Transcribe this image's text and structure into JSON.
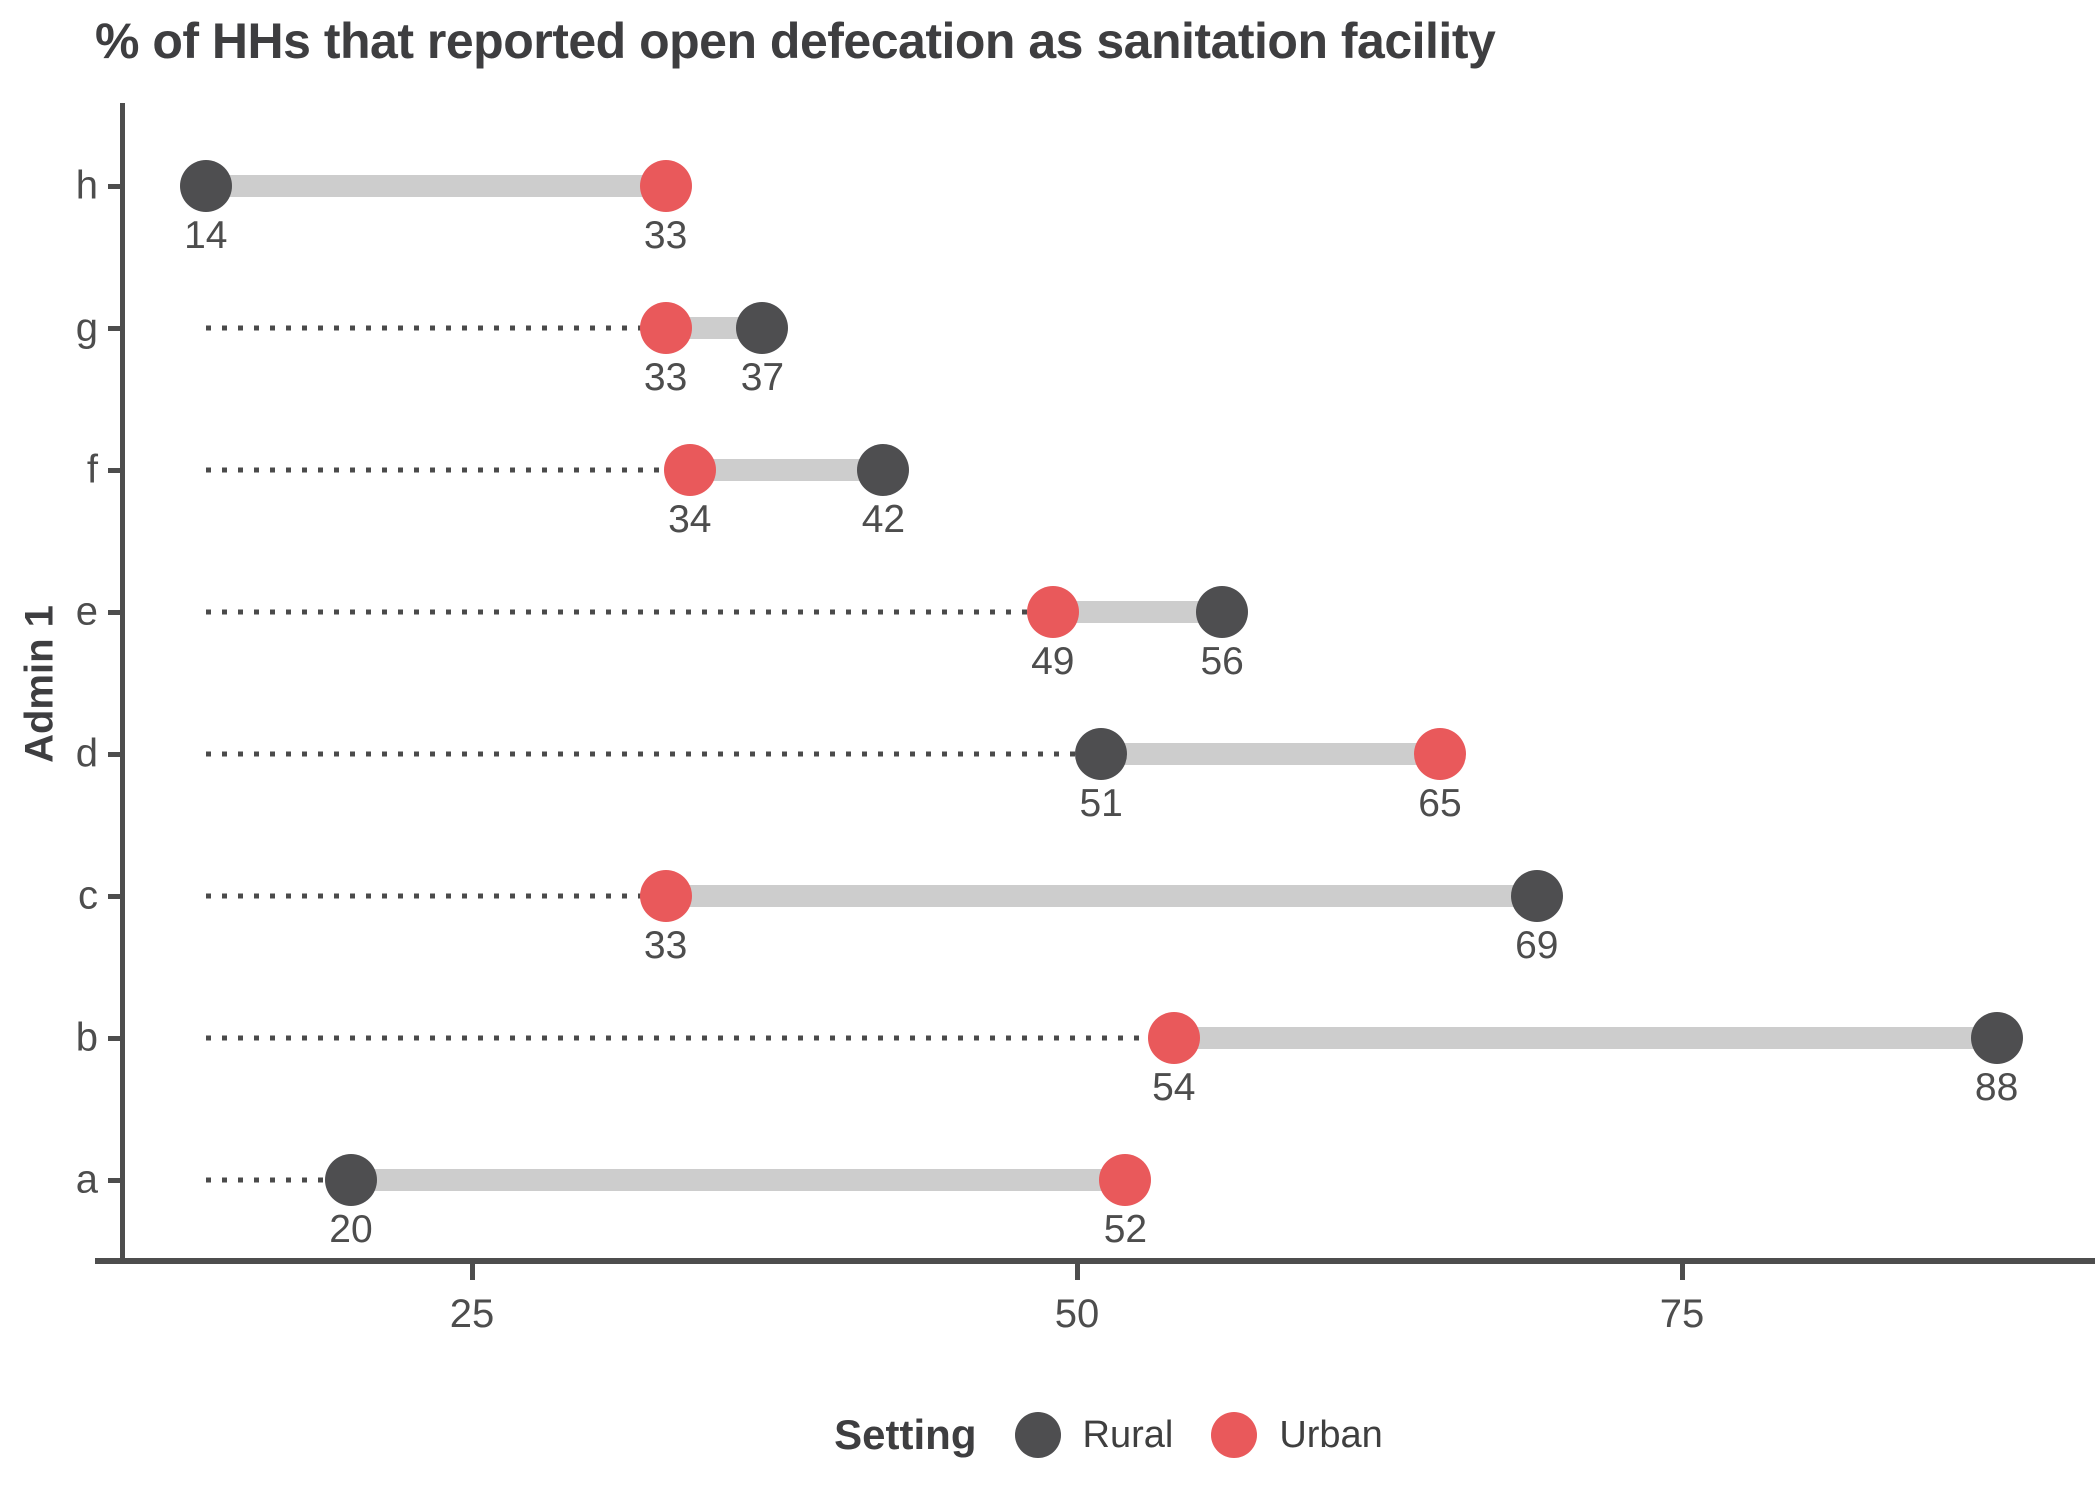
{
  "chart_data": {
    "type": "dumbbell",
    "title": "% of HHs that reported open defecation as sanitation facility",
    "xlabel": "",
    "ylabel": "Admin 1",
    "categories": [
      "h",
      "g",
      "f",
      "e",
      "d",
      "c",
      "b",
      "a"
    ],
    "series": [
      {
        "name": "Rural",
        "color": "#4E4E50",
        "values": [
          14,
          37,
          42,
          56,
          51,
          69,
          88,
          20
        ]
      },
      {
        "name": "Urban",
        "color": "#E9595B",
        "values": [
          33,
          33,
          34,
          49,
          65,
          33,
          54,
          52
        ]
      }
    ],
    "xticks": [
      25,
      50,
      75
    ],
    "xlim": [
      10.3,
      92
    ],
    "leader_start": 14,
    "grid": false,
    "legend": {
      "title": "Setting",
      "position": "bottom",
      "entries": [
        "Rural",
        "Urban"
      ]
    }
  },
  "colors": {
    "rural": "#4E4E50",
    "urban": "#E9595B",
    "connector": "#CDCDCD",
    "leader": "#4A4A4A",
    "axis": "#4D4D4D",
    "text": "#4D4D4D",
    "title": "#3E3E40"
  }
}
